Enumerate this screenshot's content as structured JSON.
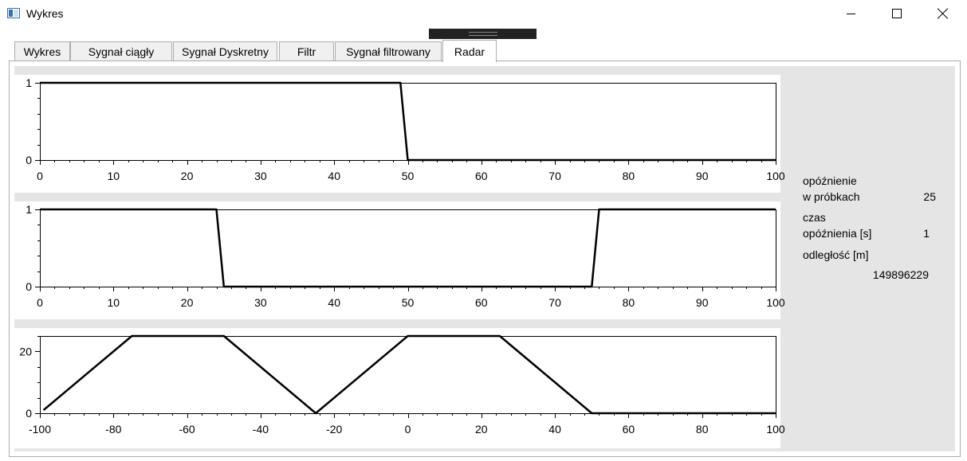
{
  "window": {
    "title": "Wykres",
    "icon": "window-app-icon"
  },
  "tabs": [
    {
      "label": "Wykres",
      "active": false
    },
    {
      "label": "Sygnał ciągły",
      "active": false
    },
    {
      "label": "Sygnał Dyskretny",
      "active": false
    },
    {
      "label": "Filtr",
      "active": false
    },
    {
      "label": "Sygnał filtrowany",
      "active": false
    },
    {
      "label": "Radar",
      "active": true
    }
  ],
  "side_panel": {
    "delay_samples_label_1": "opóźnienie",
    "delay_samples_label_2": "w próbkach",
    "delay_samples_value": "25",
    "delay_time_label_1": "czas",
    "delay_time_label_2": "opóźnienia [s]",
    "delay_time_value": "1",
    "distance_label": "odległość [m]",
    "distance_value": "149896229"
  },
  "chart_data": [
    {
      "type": "line",
      "xlim": [
        0,
        100
      ],
      "ylim": [
        0,
        1
      ],
      "xticks": [
        0,
        10,
        20,
        30,
        40,
        50,
        60,
        70,
        80,
        90,
        100
      ],
      "yticks": [
        0,
        1
      ],
      "series": [
        {
          "color": "#000000",
          "x": [
            0,
            49,
            50,
            100
          ],
          "y": [
            1,
            1,
            0,
            0
          ]
        }
      ]
    },
    {
      "type": "line",
      "xlim": [
        0,
        100
      ],
      "ylim": [
        0,
        1
      ],
      "xticks": [
        0,
        10,
        20,
        30,
        40,
        50,
        60,
        70,
        80,
        90,
        100
      ],
      "yticks": [
        0,
        1
      ],
      "series": [
        {
          "color": "#000000",
          "x": [
            0,
            24,
            25,
            75,
            76,
            100
          ],
          "y": [
            1,
            1,
            0,
            0,
            1,
            1
          ]
        }
      ]
    },
    {
      "type": "line",
      "xlim": [
        -100,
        100
      ],
      "ylim": [
        0,
        25
      ],
      "xticks": [
        -100,
        -80,
        -60,
        -40,
        -20,
        0,
        20,
        40,
        60,
        80,
        100
      ],
      "yticks": [
        0,
        20
      ],
      "series": [
        {
          "color": "#000000",
          "x": [
            -99,
            -75,
            -50,
            -25,
            0,
            25,
            50,
            100
          ],
          "y": [
            1,
            25,
            25,
            0,
            25,
            25,
            0,
            0
          ]
        }
      ]
    }
  ]
}
